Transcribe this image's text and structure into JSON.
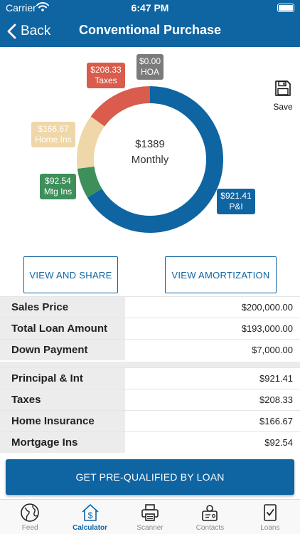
{
  "status_bar": {
    "carrier": "Carrier",
    "time": "6:47 PM"
  },
  "nav": {
    "back_label": "Back",
    "title": "Conventional Purchase"
  },
  "chart_data": {
    "type": "pie",
    "center_value": "$1389",
    "center_label": "Monthly",
    "slices": [
      {
        "name": "P&I",
        "value": 921.41,
        "label": "$921.41",
        "color": "#0f64a2"
      },
      {
        "name": "Mtg Ins",
        "value": 92.54,
        "label": "$92.54",
        "color": "#3e8f5a"
      },
      {
        "name": "Home Ins",
        "value": 166.67,
        "label": "$166.67",
        "color": "#efd7a9"
      },
      {
        "name": "Taxes",
        "value": 208.33,
        "label": "$208.33",
        "color": "#d95c4c"
      },
      {
        "name": "HOA",
        "value": 0.0,
        "label": "$0.00",
        "color": "#7b7b7b"
      }
    ]
  },
  "actions": {
    "save_label": "Save",
    "view_share": "VIEW AND SHARE",
    "view_amortization": "VIEW AMORTIZATION"
  },
  "summary_rows": [
    {
      "label": "Sales Price",
      "value": "$200,000.00"
    },
    {
      "label": "Total Loan Amount",
      "value": "$193,000.00"
    },
    {
      "label": "Down Payment",
      "value": "$7,000.00"
    }
  ],
  "payment_rows": [
    {
      "label": "Principal & Int",
      "value": "$921.41"
    },
    {
      "label": "Taxes",
      "value": "$208.33"
    },
    {
      "label": "Home Insurance",
      "value": "$166.67"
    },
    {
      "label": "Mortgage Ins",
      "value": "$92.54"
    }
  ],
  "cta": {
    "label": "GET PRE-QUALIFIED BY LOAN"
  },
  "tabs": [
    {
      "label": "Feed",
      "icon": "globe-icon"
    },
    {
      "label": "Calculator",
      "icon": "house-dollar-icon"
    },
    {
      "label": "Scanner",
      "icon": "printer-icon"
    },
    {
      "label": "Contacts",
      "icon": "contacts-icon"
    },
    {
      "label": "Loans",
      "icon": "document-check-icon"
    }
  ],
  "colors": {
    "brand": "#0f64a2",
    "row_label_bg": "#ececec",
    "tab_inactive": "#8a8a8a"
  }
}
